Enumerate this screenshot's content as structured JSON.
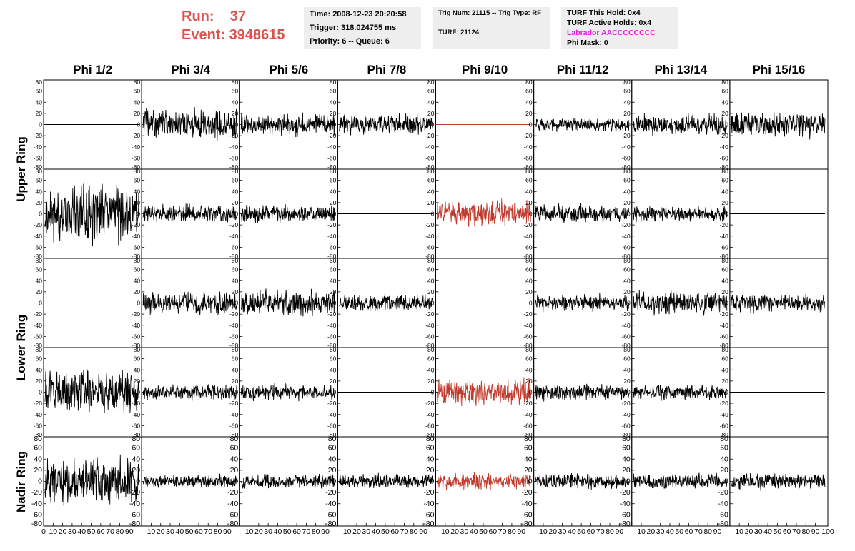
{
  "header": {
    "run_label": "Run:    37",
    "event_label": "Event: 3948615",
    "time": "Time: 2008-12-23 20:20:58",
    "trigger": "Trigger: 318.024755 ms",
    "priority": "Priority: 6 -- Queue: 6",
    "trig_num": "Trig Num: 21115 -- Trig Type: RF",
    "turf": "TURF: 21124",
    "turf_this_hold": "TURF This Hold: 0x4",
    "turf_active_holds": "TURF Active Holds: 0x4",
    "labrador": "Labrador AACCCCCCCC",
    "phi_mask": "Phi Mask: 0"
  },
  "colors": {
    "accent_red": "#d9534f",
    "labrador_magenta": "#e020e0",
    "trace_black": "#000000",
    "trace_red": "#c0392b",
    "infobox_bg": "#eeeeee"
  },
  "columns": [
    "Phi 1/2",
    "Phi 3/4",
    "Phi 5/6",
    "Phi 7/8",
    "Phi 9/10",
    "Phi 11/12",
    "Phi 13/14",
    "Phi 15/16"
  ],
  "row_labels": [
    {
      "label": "Upper Ring",
      "rows": [
        0,
        1
      ]
    },
    {
      "label": "Lower Ring",
      "rows": [
        2,
        3
      ]
    },
    {
      "label": "Nadir Ring",
      "rows": [
        4
      ]
    }
  ],
  "chart_data": {
    "type": "line",
    "xlim": [
      0,
      100
    ],
    "ylim": [
      -80,
      80
    ],
    "y_ticks": [
      80,
      60,
      40,
      20,
      0,
      -20,
      -40,
      -60,
      -80
    ],
    "x_ticks": [
      0,
      10,
      20,
      30,
      40,
      50,
      60,
      70,
      80,
      90,
      100
    ],
    "x_samples": 90,
    "rows": 5,
    "cols": 8,
    "panel_amplitude": [
      [
        0,
        20,
        15,
        14,
        0,
        9,
        14,
        17
      ],
      [
        40,
        12,
        12,
        0,
        18,
        12,
        11,
        0
      ],
      [
        0,
        15,
        17,
        11,
        0,
        11,
        15,
        12
      ],
      [
        30,
        10,
        10,
        0,
        18,
        11,
        10,
        0
      ],
      [
        30,
        9,
        10,
        10,
        11,
        10,
        10,
        11
      ]
    ],
    "highlighted_column": 4
  }
}
